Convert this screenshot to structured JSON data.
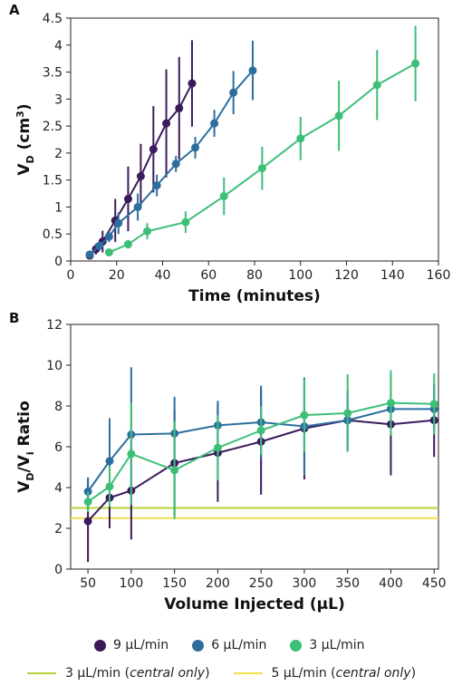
{
  "colors": {
    "c9": "#3b1a5c",
    "c6": "#2e6e9e",
    "c3": "#3dbf78",
    "central3": "#b7d33a",
    "central5": "#f0e04a"
  },
  "chart_data": [
    {
      "panel": "A",
      "type": "line",
      "xlabel": "Time (minutes)",
      "ylabel_main": "V",
      "ylabel_sub": "D",
      "ylabel_rest": " (cm",
      "ylabel_sup": "3",
      "ylabel_end": ")",
      "xlim": [
        0,
        160
      ],
      "ylim": [
        0,
        4.5
      ],
      "xticks": [
        0,
        20,
        40,
        60,
        80,
        100,
        120,
        140,
        160
      ],
      "yticks": [
        0,
        0.5,
        1,
        1.5,
        2,
        2.5,
        3,
        3.5,
        4,
        4.5
      ],
      "series": [
        {
          "key": "c9",
          "x": [
            8.3,
            11,
            13.9,
            19.4,
            25,
            30.5,
            36,
            41.6,
            47.2,
            52.8
          ],
          "y": [
            0.1,
            0.22,
            0.36,
            0.75,
            1.15,
            1.57,
            2.07,
            2.55,
            2.83,
            3.29
          ],
          "err": [
            0.05,
            0.1,
            0.2,
            0.4,
            0.6,
            0.6,
            0.8,
            1.0,
            0.95,
            0.8
          ]
        },
        {
          "key": "c6",
          "x": [
            8.3,
            12.5,
            16.7,
            20.8,
            29.2,
            37.5,
            45.8,
            54.2,
            62.5,
            70.8,
            79.2
          ],
          "y": [
            0.12,
            0.28,
            0.45,
            0.7,
            1.0,
            1.4,
            1.8,
            2.1,
            2.55,
            3.12,
            3.53
          ],
          "err": [
            0.04,
            0.08,
            0.1,
            0.2,
            0.25,
            0.2,
            0.15,
            0.2,
            0.25,
            0.4,
            0.55
          ]
        },
        {
          "key": "c3",
          "x": [
            16.7,
            25,
            33.3,
            50,
            66.7,
            83.3,
            100,
            116.7,
            133.3,
            150
          ],
          "y": [
            0.16,
            0.31,
            0.55,
            0.72,
            1.2,
            1.72,
            2.27,
            2.69,
            3.26,
            3.66
          ],
          "err": [
            0.05,
            0.08,
            0.15,
            0.2,
            0.35,
            0.4,
            0.4,
            0.65,
            0.65,
            0.7
          ]
        }
      ]
    },
    {
      "panel": "B",
      "type": "line",
      "xlabel": "Volume Injected (µL)",
      "ylabel_main": "V",
      "ylabel_sub": "D",
      "ylabel_rest": "/V",
      "ylabel_sub2": "i",
      "ylabel_end": " Ratio",
      "xlim": [
        30,
        455
      ],
      "ylim": [
        0,
        12
      ],
      "xticks": [
        50,
        100,
        150,
        200,
        250,
        300,
        350,
        400,
        450
      ],
      "yticks": [
        0,
        2,
        4,
        6,
        8,
        10,
        12
      ],
      "series": [
        {
          "key": "c9",
          "x": [
            50,
            75,
            100,
            150,
            200,
            250,
            300,
            350,
            400,
            450
          ],
          "y": [
            2.35,
            3.5,
            3.85,
            5.2,
            5.7,
            6.25,
            6.9,
            7.3,
            7.1,
            7.3
          ],
          "err": [
            2.0,
            1.5,
            2.4,
            2.6,
            2.4,
            2.6,
            2.5,
            1.5,
            2.5,
            1.8
          ]
        },
        {
          "key": "c6",
          "x": [
            50,
            75,
            100,
            150,
            200,
            250,
            300,
            350,
            400,
            450
          ],
          "y": [
            3.8,
            5.3,
            6.6,
            6.65,
            7.05,
            7.2,
            7.0,
            7.3,
            7.85,
            7.85
          ],
          "err": [
            0.7,
            2.1,
            3.3,
            1.8,
            1.2,
            1.8,
            2.4,
            1.2,
            1.0,
            1.0
          ]
        },
        {
          "key": "c3",
          "x": [
            50,
            75,
            100,
            150,
            200,
            250,
            300,
            350,
            400,
            450
          ],
          "y": [
            3.3,
            4.05,
            5.65,
            4.85,
            5.95,
            6.8,
            7.55,
            7.65,
            8.15,
            8.1
          ],
          "err": [
            0.5,
            1.0,
            2.5,
            2.4,
            1.6,
            1.2,
            1.8,
            1.9,
            1.6,
            1.5
          ]
        }
      ],
      "hlines": [
        {
          "key": "central3",
          "y": 3.0
        },
        {
          "key": "central5",
          "y": 2.5
        }
      ]
    }
  ],
  "legend": {
    "dots": [
      {
        "key": "c9",
        "label": "9 µL/min"
      },
      {
        "key": "c6",
        "label": "6 µL/min"
      },
      {
        "key": "c3",
        "label": "3 µL/min"
      }
    ],
    "lines": [
      {
        "key": "central3",
        "label_main": "3 µL/min (",
        "label_italic": "central only",
        "label_end": ")"
      },
      {
        "key": "central5",
        "label_main": "5 µL/min (",
        "label_italic": "central only",
        "label_end": ")"
      }
    ]
  }
}
